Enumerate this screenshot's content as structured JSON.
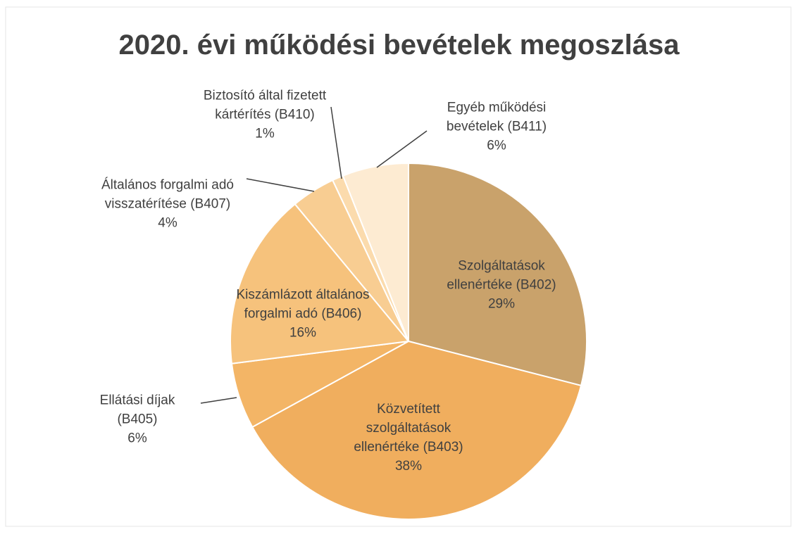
{
  "chart_data": {
    "type": "pie",
    "title": "2020. évi működési bevételek megoszlása",
    "categories": [
      "Szolgáltatások ellenértéke (B402)",
      "Közvetített szolgáltatások ellenértéke (B403)",
      "Ellátási díjak (B405)",
      "Kiszámlázott általános forgalmi adó (B406)",
      "Általános forgalmi adó visszatérítése (B407)",
      "Biztosító által fizetett kártérítés (B410)",
      "Egyéb működési bevételek (B411)"
    ],
    "values": [
      29,
      38,
      6,
      16,
      4,
      1,
      6
    ],
    "value_labels": [
      "29%",
      "38%",
      "6%",
      "16%",
      "4%",
      "1%",
      "6%"
    ],
    "colors": [
      "#c9a26b",
      "#f0ae5e",
      "#f3b566",
      "#f6c27c",
      "#f8cd92",
      "#fbdbad",
      "#fdebd2"
    ]
  }
}
